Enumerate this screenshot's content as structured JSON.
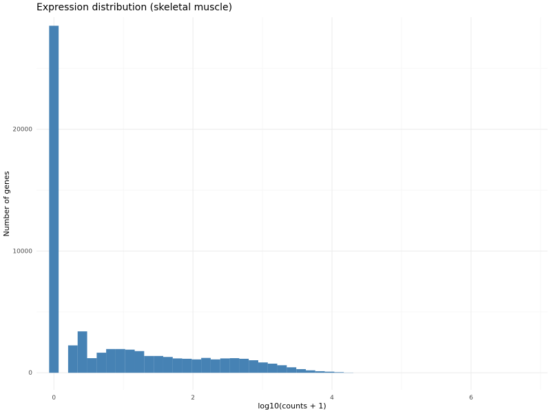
{
  "chart_data": {
    "type": "bar",
    "title": "Expression distribution (skeletal muscle)",
    "xlabel": "log10(counts + 1)",
    "ylabel": "Number of genes",
    "xlim": [
      -0.25,
      7.1
    ],
    "ylim": [
      -1400,
      29200
    ],
    "x_ticks": [
      0,
      2,
      4,
      6
    ],
    "x_tick_labels": [
      "0",
      "2",
      "4",
      "6"
    ],
    "y_ticks": [
      0,
      10000,
      20000
    ],
    "y_tick_labels": [
      "0",
      "10000",
      "20000"
    ],
    "grid": true,
    "legend": "none",
    "bar_color": "#4682B4",
    "bin_width": 0.1367,
    "bins": [
      {
        "x": 0.0,
        "value": 28500
      },
      {
        "x": 0.137,
        "value": 0
      },
      {
        "x": 0.273,
        "value": 2250
      },
      {
        "x": 0.41,
        "value": 3400
      },
      {
        "x": 0.547,
        "value": 1200
      },
      {
        "x": 0.684,
        "value": 1650
      },
      {
        "x": 0.82,
        "value": 1950
      },
      {
        "x": 0.957,
        "value": 1950
      },
      {
        "x": 1.094,
        "value": 1900
      },
      {
        "x": 1.23,
        "value": 1780
      },
      {
        "x": 1.367,
        "value": 1380
      },
      {
        "x": 1.504,
        "value": 1380
      },
      {
        "x": 1.641,
        "value": 1300
      },
      {
        "x": 1.777,
        "value": 1180
      },
      {
        "x": 1.914,
        "value": 1150
      },
      {
        "x": 2.051,
        "value": 1100
      },
      {
        "x": 2.187,
        "value": 1220
      },
      {
        "x": 2.324,
        "value": 1100
      },
      {
        "x": 2.461,
        "value": 1180
      },
      {
        "x": 2.598,
        "value": 1200
      },
      {
        "x": 2.734,
        "value": 1150
      },
      {
        "x": 2.871,
        "value": 1030
      },
      {
        "x": 3.008,
        "value": 850
      },
      {
        "x": 3.144,
        "value": 750
      },
      {
        "x": 3.281,
        "value": 620
      },
      {
        "x": 3.418,
        "value": 450
      },
      {
        "x": 3.555,
        "value": 300
      },
      {
        "x": 3.691,
        "value": 200
      },
      {
        "x": 3.828,
        "value": 130
      },
      {
        "x": 3.965,
        "value": 90
      },
      {
        "x": 4.101,
        "value": 50
      },
      {
        "x": 4.238,
        "value": 15
      }
    ]
  }
}
